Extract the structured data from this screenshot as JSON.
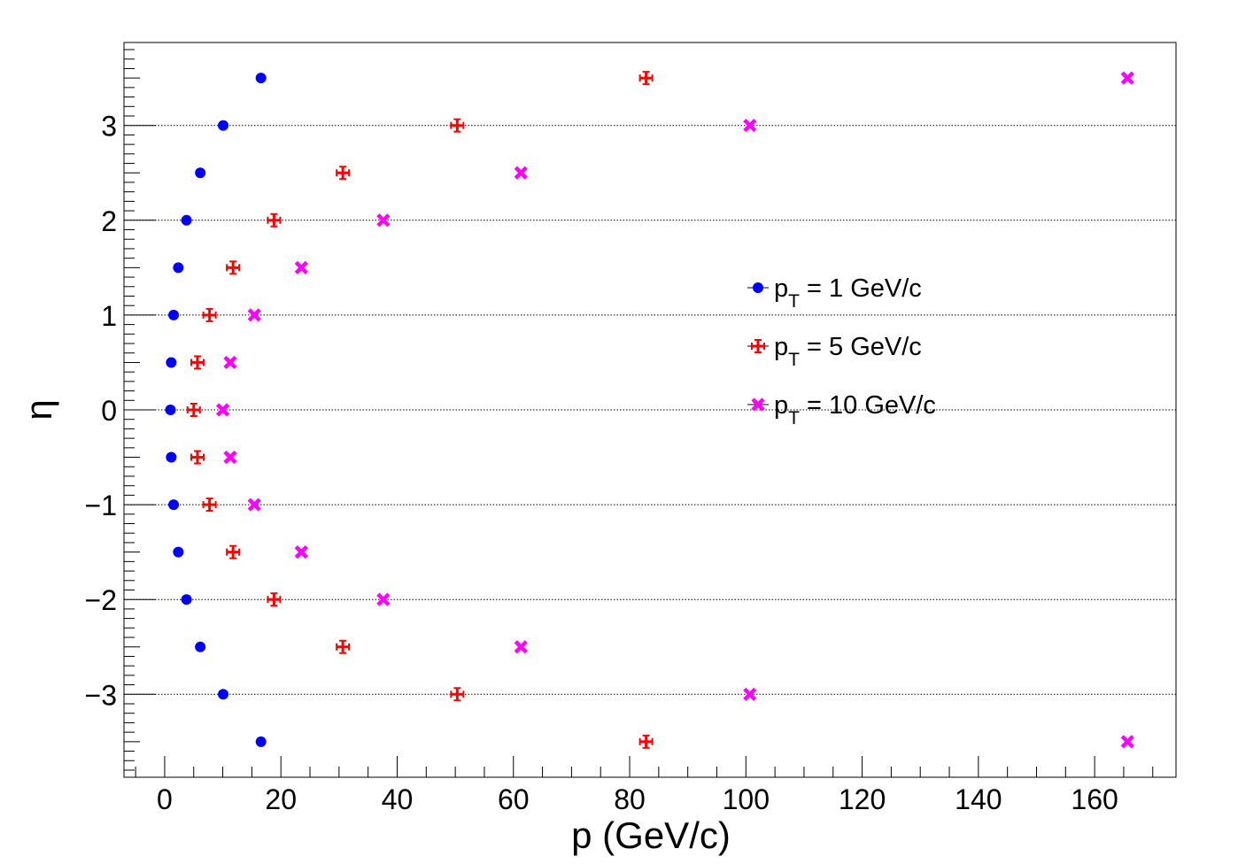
{
  "chart_data": {
    "type": "scatter",
    "title": "",
    "xlabel": "p (GeV/c)",
    "ylabel": "η",
    "xlim": [
      -7,
      174
    ],
    "ylim": [
      -3.875,
      3.875
    ],
    "xticks": [
      0,
      20,
      40,
      60,
      80,
      100,
      120,
      140,
      160
    ],
    "xtick_labels": [
      "0",
      "20",
      "40",
      "60",
      "80",
      "100",
      "120",
      "140",
      "160"
    ],
    "yticks": [
      -3,
      -2,
      -1,
      0,
      1,
      2,
      3
    ],
    "ytick_labels": [
      "−3",
      "−2",
      "−1",
      "0",
      "1",
      "2",
      "3"
    ],
    "grid": "horizontal",
    "legend_position": "middle-right",
    "series": [
      {
        "name": "p_T = 1 GeV/c",
        "legend": {
          "main": "p",
          "sub": "T",
          "rest": " = 1 GeV/c"
        },
        "color": "#0000ff",
        "marker": "circle",
        "eta": [
          -3.5,
          -3,
          -2.5,
          -2,
          -1.5,
          -1,
          -0.5,
          0,
          0.5,
          1,
          1.5,
          2,
          2.5,
          3,
          3.5
        ],
        "p": [
          16.57,
          10.07,
          6.13,
          3.76,
          2.35,
          1.54,
          1.13,
          1.0,
          1.13,
          1.54,
          2.35,
          3.76,
          6.13,
          10.07,
          16.57
        ]
      },
      {
        "name": "p_T = 5 GeV/c",
        "legend": {
          "main": "p",
          "sub": "T",
          "rest": " = 5 GeV/c"
        },
        "color": "#ff0000",
        "marker": "cross",
        "eta": [
          -3.5,
          -3,
          -2.5,
          -2,
          -1.5,
          -1,
          -0.5,
          0,
          0.5,
          1,
          1.5,
          2,
          2.5,
          3,
          3.5
        ],
        "p": [
          82.83,
          50.34,
          30.65,
          18.81,
          11.76,
          7.72,
          5.64,
          5.0,
          5.64,
          7.72,
          11.76,
          18.81,
          30.65,
          50.34,
          82.83
        ]
      },
      {
        "name": "p_T = 10 GeV/c",
        "legend": {
          "main": "p",
          "sub": "T",
          "rest": " = 10 GeV/c"
        },
        "color": "#ff00ff",
        "marker": "x",
        "eta": [
          -3.5,
          -3,
          -2.5,
          -2,
          -1.5,
          -1,
          -0.5,
          0,
          0.5,
          1,
          1.5,
          2,
          2.5,
          3,
          3.5
        ],
        "p": [
          165.66,
          100.68,
          61.3,
          37.62,
          23.52,
          15.43,
          11.28,
          10.0,
          11.28,
          15.43,
          23.52,
          37.62,
          61.3,
          100.68,
          165.66
        ]
      }
    ]
  }
}
